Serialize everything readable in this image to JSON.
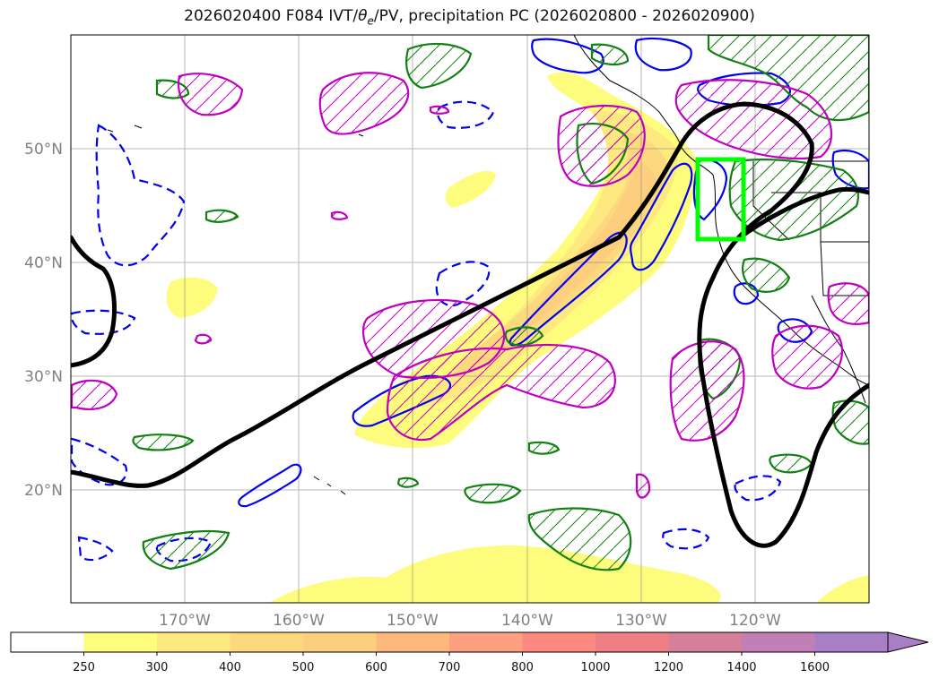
{
  "title": {
    "prefix": "2026020400 F084 IVT/",
    "theta": "θ",
    "theta_sub": "e",
    "suffix": "/PV, precipitation PC (2026020800 - 2026020900)"
  },
  "axes": {
    "lat_labels": [
      "20°N",
      "30°N",
      "40°N",
      "50°N"
    ],
    "lon_labels": [
      "170°W",
      "160°W",
      "150°W",
      "140°W",
      "130°W",
      "120°W"
    ]
  },
  "colorbar": {
    "levels": [
      "250",
      "300",
      "400",
      "500",
      "600",
      "700",
      "800",
      "1000",
      "1200",
      "1400",
      "1600"
    ],
    "colors": [
      "#ffffff",
      "#fefc7d",
      "#fde980",
      "#fdd97e",
      "#fdce7e",
      "#fdb87e",
      "#fda07f",
      "#fd8a80",
      "#ee7f85",
      "#d57f9a",
      "#c07fb7",
      "#a87ec7"
    ]
  },
  "colors": {
    "ivt_fill": "#fde980",
    "ivt_core": "#fdd07e",
    "theta_contour": "#000000",
    "pv_positive": "#0000ee",
    "pv_negative_dashed": "#0000ee",
    "precip_green": "#128012",
    "precip_magenta": "#c000c0",
    "focus_box": "#00ff00"
  }
}
